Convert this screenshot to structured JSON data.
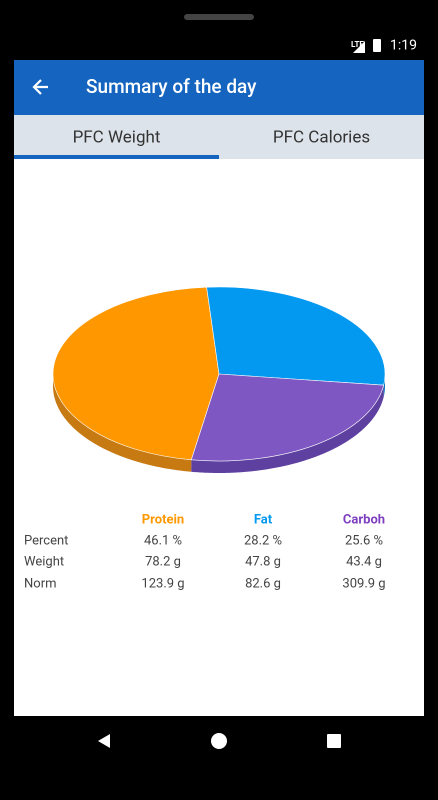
{
  "status_bar": {
    "network": "LTE",
    "time": "1:19"
  },
  "app_bar": {
    "title": "Summary of the day"
  },
  "tabs": [
    {
      "label": "PFC Weight",
      "selected": true
    },
    {
      "label": "PFC Calories",
      "selected": false
    }
  ],
  "chart_data": {
    "type": "pie",
    "values": [
      46.1,
      28.2,
      25.6
    ],
    "colors": [
      "#ff9800",
      "#0399f0",
      "#7e57c2"
    ],
    "side_colors": [
      "#c87a12",
      "#0277bd",
      "#5e40a0"
    ]
  },
  "table": {
    "columns": [
      "Protein",
      "Fat",
      "Carboh"
    ],
    "column_colors": [
      "#ff9800",
      "#0399f0",
      "#7e3fc0"
    ],
    "rows": [
      [
        "Percent",
        "46.1 %",
        "28.2 %",
        "25.6 %"
      ],
      [
        "Weight",
        "78.2 g",
        "47.8 g",
        "43.4 g"
      ],
      [
        "Norm",
        "123.9 g",
        "82.6 g",
        "309.9 g"
      ]
    ]
  }
}
